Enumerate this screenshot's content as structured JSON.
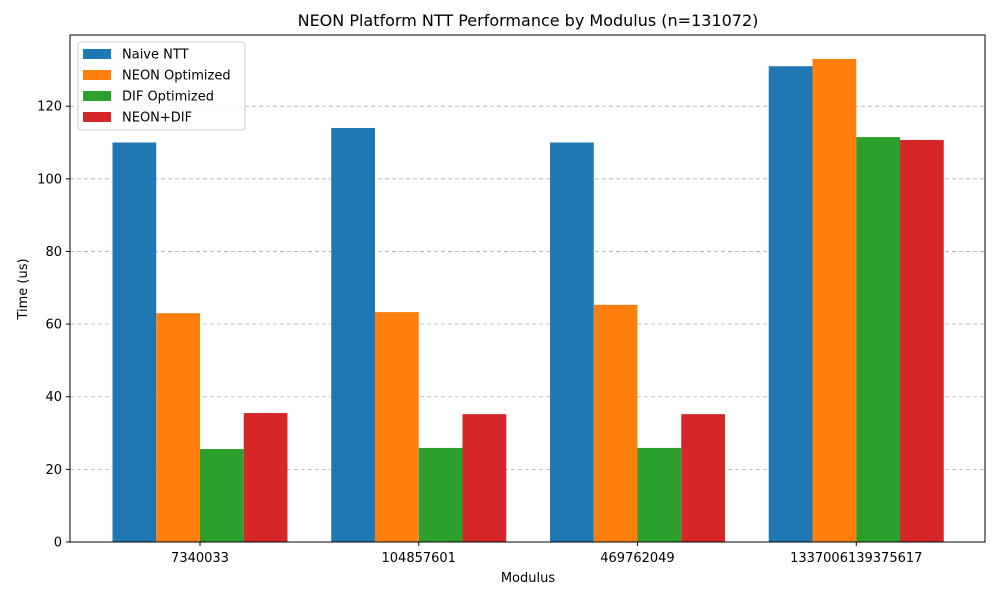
{
  "chart_data": {
    "type": "bar",
    "title": "NEON Platform NTT Performance by Modulus (n=131072)",
    "xlabel": "Modulus",
    "ylabel": "Time (us)",
    "categories": [
      "7340033",
      "104857601",
      "469762049",
      "1337006139375617"
    ],
    "series": [
      {
        "name": "Naive NTT",
        "color": "#1f77b4",
        "values": [
          110.0,
          114.0,
          110.0,
          131.0
        ]
      },
      {
        "name": "NEON Optimized",
        "color": "#ff7f0e",
        "values": [
          63.0,
          63.3,
          65.3,
          133.0
        ]
      },
      {
        "name": "DIF Optimized",
        "color": "#2ca02c",
        "values": [
          25.6,
          25.9,
          25.9,
          111.5
        ]
      },
      {
        "name": "NEON+DIF",
        "color": "#d62728",
        "values": [
          35.5,
          35.2,
          35.2,
          110.7
        ]
      }
    ],
    "ylim": [
      0,
      139.6
    ],
    "yticks": [
      0,
      20,
      40,
      60,
      80,
      100,
      120
    ],
    "grid": "y-dashed",
    "legend_position": "top-left"
  }
}
